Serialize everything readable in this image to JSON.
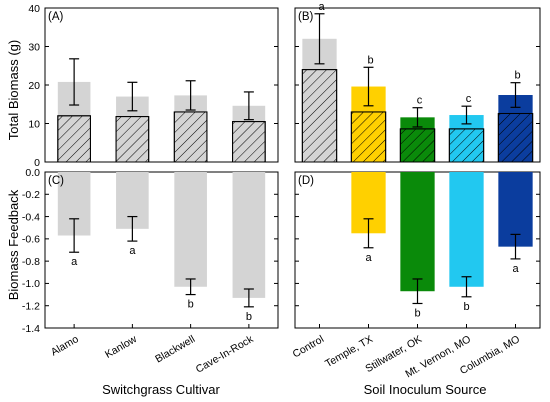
{
  "chart_data": [
    {
      "id": "A",
      "type": "bar",
      "panel_label": "(A)",
      "ylabel": "Total Biomass (g)",
      "ylim": [
        0,
        40
      ],
      "yticks": [
        0,
        10,
        20,
        30,
        40
      ],
      "categories": [
        "Alamo",
        "Kanlow",
        "Blackwell",
        "Cave-In-Rock"
      ],
      "series": [
        {
          "name": "",
          "values": [
            20.8,
            17.0,
            17.3,
            14.6
          ],
          "errors": [
            6.0,
            3.7,
            3.8,
            3.6
          ],
          "colors": [
            "#d4d4d4",
            "#d4d4d4",
            "#d4d4d4",
            "#d4d4d4"
          ]
        },
        {
          "name": "",
          "values": [
            12.0,
            11.8,
            13.0,
            10.5
          ],
          "hatched": true,
          "colors": [
            "#d4d4d4",
            "#d4d4d4",
            "#d4d4d4",
            "#d4d4d4"
          ]
        }
      ],
      "letters": []
    },
    {
      "id": "B",
      "type": "bar",
      "panel_label": "(B)",
      "ylabel": "",
      "ylim": [
        0,
        40
      ],
      "yticks": [
        0,
        10,
        20,
        30,
        40
      ],
      "categories": [
        "Control",
        "Temple, TX",
        "Stillwater, OK",
        "Mt. Vernon, MO",
        "Columbia, MO"
      ],
      "series": [
        {
          "name": "",
          "values": [
            32.0,
            19.6,
            11.6,
            12.2,
            17.4
          ],
          "errors": [
            6.5,
            5.0,
            2.5,
            2.3,
            3.2
          ],
          "colors": [
            "#d4d4d4",
            "#ffd000",
            "#0a8a0a",
            "#22c8f0",
            "#0b3d9e"
          ]
        },
        {
          "name": "",
          "values": [
            24.0,
            13.0,
            8.6,
            8.6,
            12.6
          ],
          "hatched": true,
          "colors": [
            "#d4d4d4",
            "#ffd000",
            "#0a8a0a",
            "#22c8f0",
            "#0b3d9e"
          ]
        }
      ],
      "letters": [
        "a",
        "b",
        "c",
        "c",
        "b"
      ]
    },
    {
      "id": "C",
      "type": "bar",
      "panel_label": "(C)",
      "ylabel": "Biomass Feedback",
      "xlabel": "Switchgrass Cultivar",
      "ylim": [
        -1.4,
        0
      ],
      "yticks": [
        0,
        -0.2,
        -0.4,
        -0.6,
        -0.8,
        -1.0,
        -1.2,
        -1.4
      ],
      "ytick_labels": [
        "0.0",
        "-0.2",
        "-0.4",
        "-0.6",
        "-0.8",
        "-1.0",
        "-1.2",
        "-1.4"
      ],
      "categories": [
        "Alamo",
        "Kanlow",
        "Blackwell",
        "Cave-In-Rock"
      ],
      "series": [
        {
          "name": "",
          "values": [
            -0.57,
            -0.51,
            -1.03,
            -1.13
          ],
          "errors": [
            0.15,
            0.11,
            0.07,
            0.08
          ],
          "colors": [
            "#d4d4d4",
            "#d4d4d4",
            "#d4d4d4",
            "#d4d4d4"
          ]
        }
      ],
      "letters": [
        "a",
        "a",
        "b",
        "b"
      ]
    },
    {
      "id": "D",
      "type": "bar",
      "panel_label": "(D)",
      "ylabel": "",
      "xlabel": "Soil Inoculum Source",
      "ylim": [
        -1.4,
        0
      ],
      "yticks": [
        0,
        -0.2,
        -0.4,
        -0.6,
        -0.8,
        -1.0,
        -1.2,
        -1.4
      ],
      "categories": [
        "Control",
        "Temple, TX",
        "Stillwater, OK",
        "Mt. Vernon, MO",
        "Columbia, MO"
      ],
      "series": [
        {
          "name": "",
          "values": [
            null,
            -0.55,
            -1.07,
            -1.03,
            -0.67
          ],
          "errors": [
            null,
            0.13,
            0.11,
            0.09,
            0.11
          ],
          "colors": [
            "#d4d4d4",
            "#ffd000",
            "#0a8a0a",
            "#22c8f0",
            "#0b3d9e"
          ]
        }
      ],
      "letters": [
        "",
        "a",
        "b",
        "b",
        "a"
      ]
    }
  ]
}
